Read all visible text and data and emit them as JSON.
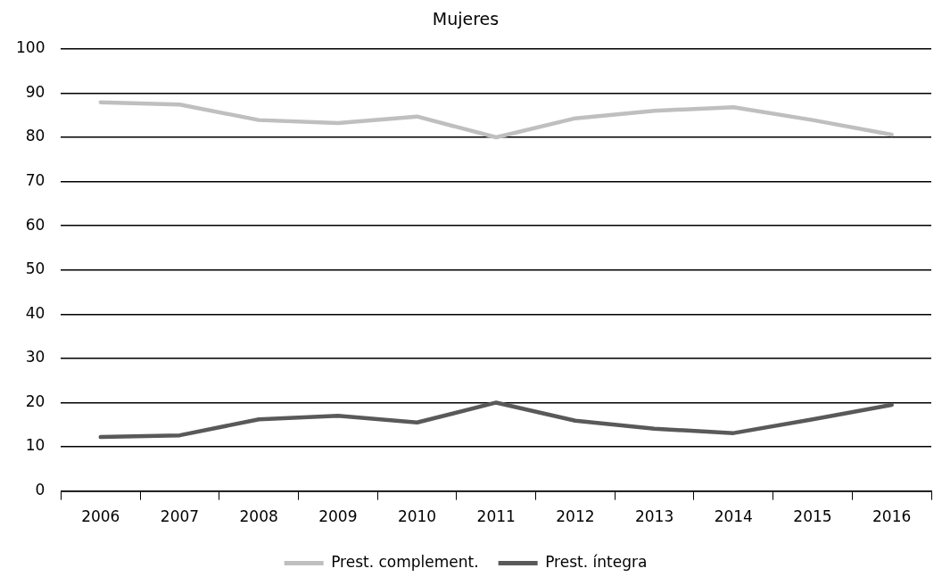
{
  "chart_data": {
    "type": "line",
    "title": "Mujeres",
    "categories": [
      "2006",
      "2007",
      "2008",
      "2009",
      "2010",
      "2011",
      "2012",
      "2013",
      "2014",
      "2015",
      "2016"
    ],
    "series": [
      {
        "name": "Prest. complement.",
        "color": "#bfbfbf",
        "values": [
          87.9,
          87.4,
          83.9,
          83.2,
          84.7,
          80.0,
          84.3,
          86.0,
          86.8,
          83.9,
          80.6
        ]
      },
      {
        "name": "Prest. íntegra",
        "color": "#595959",
        "values": [
          12.2,
          12.6,
          16.2,
          17.0,
          15.5,
          20.0,
          15.9,
          14.1,
          13.1,
          16.2,
          19.5
        ]
      }
    ],
    "ylim": [
      0,
      100
    ],
    "yticks": [
      0,
      10,
      20,
      30,
      40,
      50,
      60,
      70,
      80,
      90,
      100
    ],
    "grid": "y",
    "legend": "bottom",
    "marker": "none",
    "line_style": "solid"
  }
}
